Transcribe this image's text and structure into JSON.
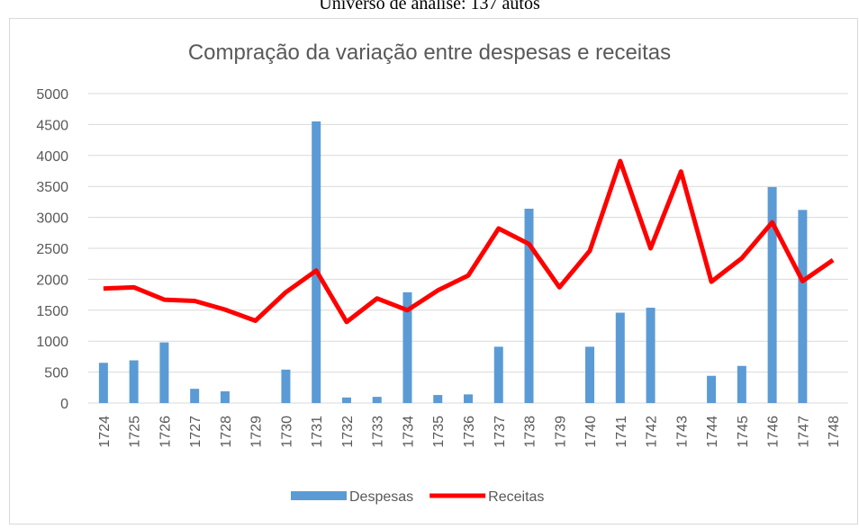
{
  "caption": "Universo de análise: 137 autos",
  "chart_data": {
    "type": "bar_line",
    "title": "Compração da variação entre despesas e receitas",
    "categories": [
      "1724",
      "1725",
      "1726",
      "1727",
      "1728",
      "1729",
      "1730",
      "1731",
      "1732",
      "1733",
      "1734",
      "1735",
      "1736",
      "1737",
      "1738",
      "1739",
      "1740",
      "1741",
      "1742",
      "1743",
      "1744",
      "1745",
      "1746",
      "1747",
      "1748"
    ],
    "series": [
      {
        "name": "Despesas",
        "type": "bar",
        "color": "#5b9bd5",
        "values": [
          650,
          690,
          980,
          230,
          190,
          0,
          540,
          4550,
          90,
          100,
          1790,
          130,
          140,
          910,
          3140,
          0,
          910,
          1460,
          1540,
          0,
          440,
          600,
          3490,
          3120,
          0
        ]
      },
      {
        "name": "Receitas",
        "type": "line",
        "color": "#ff0000",
        "values": [
          1850,
          1870,
          1670,
          1650,
          1510,
          1330,
          1790,
          2140,
          1310,
          1690,
          1500,
          1820,
          2060,
          2820,
          2570,
          1870,
          2460,
          3910,
          2500,
          3740,
          1960,
          2340,
          2920,
          1970,
          2310
        ]
      }
    ],
    "ylim": [
      0,
      5000
    ],
    "yticks": [
      0,
      500,
      1000,
      1500,
      2000,
      2500,
      3000,
      3500,
      4000,
      4500,
      5000
    ],
    "grid": true,
    "legend": "bottom"
  }
}
